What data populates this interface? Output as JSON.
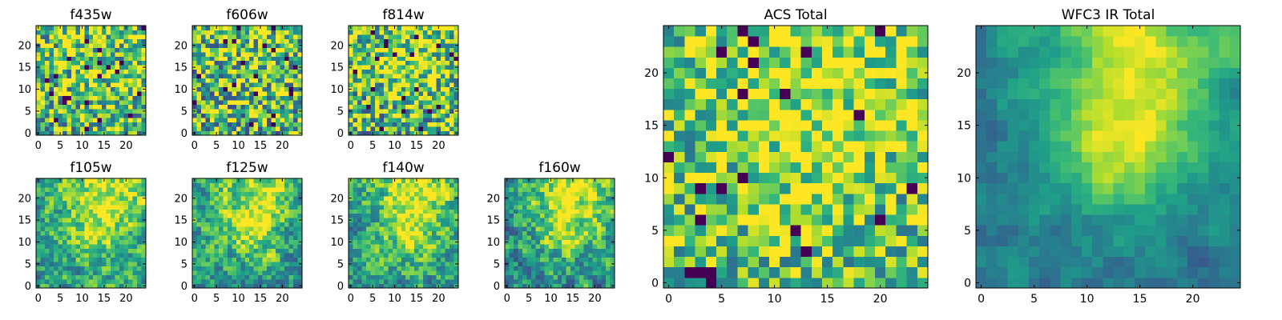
{
  "chart_data": [
    {
      "type": "heatmap",
      "title": "f435w",
      "grid": "25x25",
      "xlim": [
        -0.5,
        24.5
      ],
      "ylim": [
        -0.5,
        24.5
      ],
      "xticks": [
        0,
        5,
        10,
        15,
        20
      ],
      "yticks": [
        0,
        5,
        10,
        15,
        20
      ],
      "colormap": "viridis",
      "seed": 11,
      "mean": 0.68,
      "noise": 0.45,
      "peak": 0.08,
      "smooth": 0
    },
    {
      "type": "heatmap",
      "title": "f606w",
      "grid": "25x25",
      "xlim": [
        -0.5,
        24.5
      ],
      "ylim": [
        -0.5,
        24.5
      ],
      "xticks": [
        0,
        5,
        10,
        15,
        20
      ],
      "yticks": [
        0,
        5,
        10,
        15,
        20
      ],
      "colormap": "viridis",
      "seed": 23,
      "mean": 0.66,
      "noise": 0.48,
      "peak": 0.1,
      "smooth": 0
    },
    {
      "type": "heatmap",
      "title": "f814w",
      "grid": "25x25",
      "xlim": [
        -0.5,
        24.5
      ],
      "ylim": [
        -0.5,
        24.5
      ],
      "xticks": [
        0,
        5,
        10,
        15,
        20
      ],
      "yticks": [
        0,
        5,
        10,
        15,
        20
      ],
      "colormap": "viridis",
      "seed": 37,
      "mean": 0.66,
      "noise": 0.46,
      "peak": 0.22,
      "smooth": 0
    },
    {
      "type": "heatmap",
      "title": "f105w",
      "grid": "25x25",
      "xlim": [
        -0.5,
        24.5
      ],
      "ylim": [
        -0.5,
        24.5
      ],
      "xticks": [
        0,
        5,
        10,
        15,
        20
      ],
      "yticks": [
        0,
        5,
        10,
        15,
        20
      ],
      "colormap": "viridis",
      "seed": 41,
      "mean": 0.58,
      "noise": 0.42,
      "peak": 0.35,
      "smooth": 1
    },
    {
      "type": "heatmap",
      "title": "f125w",
      "grid": "25x25",
      "xlim": [
        -0.5,
        24.5
      ],
      "ylim": [
        -0.5,
        24.5
      ],
      "xticks": [
        0,
        5,
        10,
        15,
        20
      ],
      "yticks": [
        0,
        5,
        10,
        15,
        20
      ],
      "colormap": "viridis",
      "seed": 53,
      "mean": 0.55,
      "noise": 0.42,
      "peak": 0.38,
      "smooth": 1
    },
    {
      "type": "heatmap",
      "title": "f140w",
      "grid": "25x25",
      "xlim": [
        -0.5,
        24.5
      ],
      "ylim": [
        -0.5,
        24.5
      ],
      "xticks": [
        0,
        5,
        10,
        15,
        20
      ],
      "yticks": [
        0,
        5,
        10,
        15,
        20
      ],
      "colormap": "viridis",
      "seed": 67,
      "mean": 0.58,
      "noise": 0.42,
      "peak": 0.36,
      "smooth": 1
    },
    {
      "type": "heatmap",
      "title": "f160w",
      "grid": "25x25",
      "xlim": [
        -0.5,
        24.5
      ],
      "ylim": [
        -0.5,
        24.5
      ],
      "xticks": [
        0,
        5,
        10,
        15,
        20
      ],
      "yticks": [
        0,
        5,
        10,
        15,
        20
      ],
      "colormap": "viridis",
      "seed": 79,
      "mean": 0.52,
      "noise": 0.44,
      "peak": 0.42,
      "smooth": 1
    },
    {
      "type": "heatmap",
      "title": "ACS Total",
      "grid": "25x25",
      "xlim": [
        -0.5,
        24.5
      ],
      "ylim": [
        -0.5,
        24.5
      ],
      "xticks": [
        0,
        5,
        10,
        15,
        20
      ],
      "yticks": [
        0,
        5,
        10,
        15,
        20
      ],
      "colormap": "viridis",
      "seed": 97,
      "mean": 0.7,
      "noise": 0.36,
      "peak": 0.2,
      "smooth": 0
    },
    {
      "type": "heatmap",
      "title": "WFC3 IR Total",
      "grid": "25x25",
      "xlim": [
        -0.5,
        24.5
      ],
      "ylim": [
        -0.5,
        24.5
      ],
      "xticks": [
        0,
        5,
        10,
        15,
        20
      ],
      "yticks": [
        0,
        5,
        10,
        15,
        20
      ],
      "colormap": "viridis",
      "seed": 113,
      "mean": 0.42,
      "noise": 0.26,
      "peak": 0.5,
      "smooth": 2
    }
  ]
}
